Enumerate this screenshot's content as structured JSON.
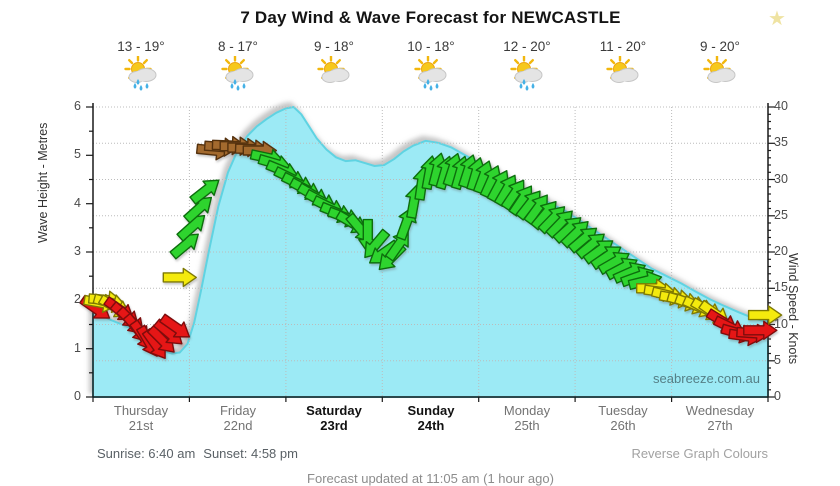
{
  "header": {
    "favorite_star": "★"
  },
  "watermark": "seabreeze.com.au",
  "footer": {
    "sunrise": "Sunrise: 6:40 am",
    "sunset": "Sunset: 4:58 pm",
    "reverse_link": "Reverse Graph Colours",
    "updated": "Forecast updated at 11:05 am  (1 hour ago)"
  },
  "colors": {
    "area_fill": "#9ceaf5",
    "area_edge": "#5fd3e2",
    "grid": "#bcbcbc",
    "axis": "#1a1a1a",
    "arrow_green_fill": "#2fd42f",
    "arrow_green_stroke": "#0b6e0b",
    "arrow_yellow_fill": "#f4ea10",
    "arrow_yellow_stroke": "#7f7a06",
    "arrow_red_fill": "#e51212",
    "arrow_red_stroke": "#7d0d0d",
    "arrow_brown_fill": "#a36a2f",
    "arrow_brown_stroke": "#55300e",
    "sun": "#f6c81c",
    "sun_ray": "#f2b70d",
    "sun_stroke": "#eda513",
    "cloud_fill": "#e4e4e4",
    "cloud_stroke": "#c6c6c6",
    "rain_drop": "#45b1e6"
  },
  "chart_data": {
    "type": "area",
    "title": "7 Day Wind & Wave Forecast for NEWCASTLE",
    "left_axis": {
      "label": "Wave Height - Metres",
      "min": 0,
      "max": 6,
      "major": 1,
      "minor": 0.5
    },
    "right_axis": {
      "label": "Wind Speed - Knots",
      "min": 0,
      "max": 40,
      "major": 5,
      "minor": 1
    },
    "grid": "dotted, horizontal every 5 knots, vertical at day boundaries",
    "legend_position": "none",
    "days": [
      {
        "label": "Thursday",
        "date": "21st",
        "temp": "13 - 19°",
        "icon": "sun-cloud-rain",
        "weekend": false
      },
      {
        "label": "Friday",
        "date": "22nd",
        "temp": "8 - 17°",
        "icon": "sun-cloud-rain",
        "weekend": false
      },
      {
        "label": "Saturday",
        "date": "23rd",
        "temp": "9 - 18°",
        "icon": "sun-cloud",
        "weekend": true
      },
      {
        "label": "Sunday",
        "date": "24th",
        "temp": "10 - 18°",
        "icon": "sun-cloud-rain",
        "weekend": true
      },
      {
        "label": "Monday",
        "date": "25th",
        "temp": "12 - 20°",
        "icon": "sun-cloud-rain",
        "weekend": false
      },
      {
        "label": "Tuesday",
        "date": "26th",
        "temp": "11 - 20°",
        "icon": "sun-cloud",
        "weekend": false
      },
      {
        "label": "Wednesday",
        "date": "27th",
        "temp": "9 - 20°",
        "icon": "sun-cloud",
        "weekend": false
      }
    ],
    "wave_height_m": {
      "units": "metres",
      "x_units": "days from Thursday 00:00",
      "points": [
        [
          0,
          1.75
        ],
        [
          0.1,
          1.68
        ],
        [
          0.2,
          1.58
        ],
        [
          0.3,
          1.5
        ],
        [
          0.4,
          1.42
        ],
        [
          0.5,
          1.3
        ],
        [
          0.62,
          1.1
        ],
        [
          0.72,
          0.96
        ],
        [
          0.82,
          0.9
        ],
        [
          0.9,
          0.92
        ],
        [
          0.98,
          1.1
        ],
        [
          1.05,
          1.55
        ],
        [
          1.12,
          2.2
        ],
        [
          1.2,
          3.0
        ],
        [
          1.3,
          3.95
        ],
        [
          1.4,
          4.65
        ],
        [
          1.5,
          5.1
        ],
        [
          1.6,
          5.4
        ],
        [
          1.7,
          5.6
        ],
        [
          1.8,
          5.75
        ],
        [
          1.9,
          5.88
        ],
        [
          2.0,
          5.97
        ],
        [
          2.08,
          6.0
        ],
        [
          2.16,
          5.85
        ],
        [
          2.24,
          5.6
        ],
        [
          2.32,
          5.35
        ],
        [
          2.42,
          5.12
        ],
        [
          2.52,
          4.96
        ],
        [
          2.62,
          4.88
        ],
        [
          2.72,
          4.9
        ],
        [
          2.82,
          4.84
        ],
        [
          2.92,
          4.78
        ],
        [
          3.02,
          4.8
        ],
        [
          3.12,
          4.92
        ],
        [
          3.22,
          5.08
        ],
        [
          3.32,
          5.2
        ],
        [
          3.45,
          5.3
        ],
        [
          3.58,
          5.26
        ],
        [
          3.72,
          5.16
        ],
        [
          3.86,
          5.0
        ],
        [
          4.0,
          4.85
        ],
        [
          4.15,
          4.68
        ],
        [
          4.3,
          4.5
        ],
        [
          4.45,
          4.32
        ],
        [
          4.6,
          4.15
        ],
        [
          4.75,
          4.0
        ],
        [
          4.9,
          3.85
        ],
        [
          5.05,
          3.65
        ],
        [
          5.2,
          3.45
        ],
        [
          5.35,
          3.25
        ],
        [
          5.5,
          3.05
        ],
        [
          5.65,
          2.85
        ],
        [
          5.8,
          2.65
        ],
        [
          5.95,
          2.5
        ],
        [
          6.1,
          2.35
        ],
        [
          6.25,
          2.18
        ],
        [
          6.4,
          2.02
        ],
        [
          6.55,
          1.88
        ],
        [
          6.7,
          1.75
        ],
        [
          6.85,
          1.63
        ],
        [
          6.95,
          1.57
        ],
        [
          7,
          1.58
        ]
      ]
    },
    "wind_arrows": {
      "units": "knots (right axis); rot degrees, 0 = pointing right, negative = up",
      "points": [
        [
          0.03,
          12.2,
          35,
          "red"
        ],
        [
          0.08,
          13.0,
          10,
          "yellow"
        ],
        [
          0.13,
          13.4,
          5,
          "yellow"
        ],
        [
          0.18,
          13.0,
          15,
          "yellow"
        ],
        [
          0.23,
          12.4,
          30,
          "yellow"
        ],
        [
          0.28,
          12.0,
          35,
          "red"
        ],
        [
          0.34,
          11.2,
          40,
          "red"
        ],
        [
          0.4,
          10.4,
          45,
          "red"
        ],
        [
          0.46,
          9.4,
          50,
          "red"
        ],
        [
          0.52,
          8.4,
          55,
          "red"
        ],
        [
          0.58,
          7.6,
          60,
          "red"
        ],
        [
          0.65,
          7.2,
          55,
          "red"
        ],
        [
          0.72,
          7.8,
          45,
          "red"
        ],
        [
          0.79,
          8.8,
          40,
          "red"
        ],
        [
          0.86,
          9.6,
          35,
          "red"
        ],
        [
          0.9,
          16.5,
          0,
          "yellow"
        ],
        [
          0.96,
          21.0,
          -40,
          "green"
        ],
        [
          1.03,
          23.5,
          -42,
          "green"
        ],
        [
          1.1,
          26.0,
          -42,
          "green"
        ],
        [
          1.17,
          28.5,
          -38,
          "green"
        ],
        [
          1.25,
          34.0,
          6,
          "brown"
        ],
        [
          1.33,
          34.5,
          4,
          "brown"
        ],
        [
          1.41,
          34.7,
          2,
          "brown"
        ],
        [
          1.49,
          34.6,
          0,
          "brown"
        ],
        [
          1.57,
          34.4,
          0,
          "brown"
        ],
        [
          1.65,
          34.2,
          2,
          "brown"
        ],
        [
          1.73,
          34.0,
          0,
          "brown"
        ],
        [
          1.81,
          33.0,
          12,
          "green"
        ],
        [
          1.89,
          32.2,
          16,
          "green"
        ],
        [
          1.97,
          31.2,
          22,
          "green"
        ],
        [
          2.05,
          30.2,
          26,
          "green"
        ],
        [
          2.13,
          29.4,
          26,
          "green"
        ],
        [
          2.21,
          28.6,
          28,
          "green"
        ],
        [
          2.29,
          27.8,
          30,
          "green"
        ],
        [
          2.37,
          27.0,
          28,
          "green"
        ],
        [
          2.45,
          26.2,
          26,
          "green"
        ],
        [
          2.53,
          25.4,
          22,
          "green"
        ],
        [
          2.61,
          24.8,
          20,
          "green"
        ],
        [
          2.69,
          24.0,
          30,
          "green"
        ],
        [
          2.77,
          23.2,
          50,
          "green"
        ],
        [
          2.85,
          22.2,
          90,
          "green"
        ],
        [
          2.93,
          21.0,
          130,
          "green"
        ],
        [
          3.01,
          19.8,
          145,
          "green"
        ],
        [
          3.09,
          19.2,
          135,
          "green"
        ],
        [
          3.17,
          21.0,
          -55,
          "green"
        ],
        [
          3.25,
          24.0,
          -70,
          "green"
        ],
        [
          3.33,
          27.0,
          -80,
          "green"
        ],
        [
          3.41,
          29.5,
          -82,
          "green"
        ],
        [
          3.49,
          31.0,
          -80,
          "green"
        ],
        [
          3.57,
          31.4,
          -76,
          "green"
        ],
        [
          3.65,
          31.0,
          -74,
          "green"
        ],
        [
          3.73,
          31.4,
          -72,
          "green"
        ],
        [
          3.81,
          31.0,
          -74,
          "green"
        ],
        [
          3.89,
          31.2,
          -72,
          "green"
        ],
        [
          3.97,
          30.8,
          -74,
          "green"
        ],
        [
          4.05,
          30.4,
          -70,
          "green"
        ],
        [
          4.13,
          29.8,
          -66,
          "green"
        ],
        [
          4.21,
          29.2,
          -62,
          "green"
        ],
        [
          4.29,
          28.6,
          -60,
          "green"
        ],
        [
          4.37,
          28.0,
          -56,
          "green"
        ],
        [
          4.45,
          27.2,
          -56,
          "green"
        ],
        [
          4.53,
          26.6,
          -52,
          "green"
        ],
        [
          4.61,
          26.0,
          -54,
          "green"
        ],
        [
          4.69,
          25.2,
          -50,
          "green"
        ],
        [
          4.77,
          24.6,
          -46,
          "green"
        ],
        [
          4.85,
          24.0,
          -46,
          "green"
        ],
        [
          4.93,
          23.2,
          -42,
          "green"
        ],
        [
          5.01,
          22.6,
          -44,
          "green"
        ],
        [
          5.09,
          21.8,
          -40,
          "green"
        ],
        [
          5.17,
          21.0,
          -40,
          "green"
        ],
        [
          5.25,
          20.2,
          -36,
          "green"
        ],
        [
          5.33,
          19.4,
          -34,
          "green"
        ],
        [
          5.41,
          18.6,
          -30,
          "green"
        ],
        [
          5.49,
          17.8,
          -28,
          "green"
        ],
        [
          5.57,
          17.2,
          -24,
          "green"
        ],
        [
          5.65,
          16.6,
          -20,
          "green"
        ],
        [
          5.73,
          16.0,
          -14,
          "green"
        ],
        [
          5.81,
          15.0,
          0,
          "yellow"
        ],
        [
          5.89,
          14.5,
          8,
          "yellow"
        ],
        [
          5.97,
          14.0,
          14,
          "yellow"
        ],
        [
          6.05,
          13.6,
          10,
          "yellow"
        ],
        [
          6.13,
          13.2,
          16,
          "yellow"
        ],
        [
          6.21,
          12.8,
          20,
          "yellow"
        ],
        [
          6.29,
          12.4,
          24,
          "yellow"
        ],
        [
          6.37,
          12.0,
          30,
          "yellow"
        ],
        [
          6.45,
          11.5,
          35,
          "yellow"
        ],
        [
          6.53,
          10.4,
          32,
          "red"
        ],
        [
          6.61,
          9.6,
          26,
          "red"
        ],
        [
          6.69,
          8.8,
          16,
          "red"
        ],
        [
          6.77,
          8.4,
          8,
          "red"
        ],
        [
          6.85,
          8.8,
          4,
          "red"
        ],
        [
          6.92,
          9.2,
          0,
          "red"
        ],
        [
          6.97,
          11.3,
          0,
          "yellow"
        ]
      ]
    }
  }
}
